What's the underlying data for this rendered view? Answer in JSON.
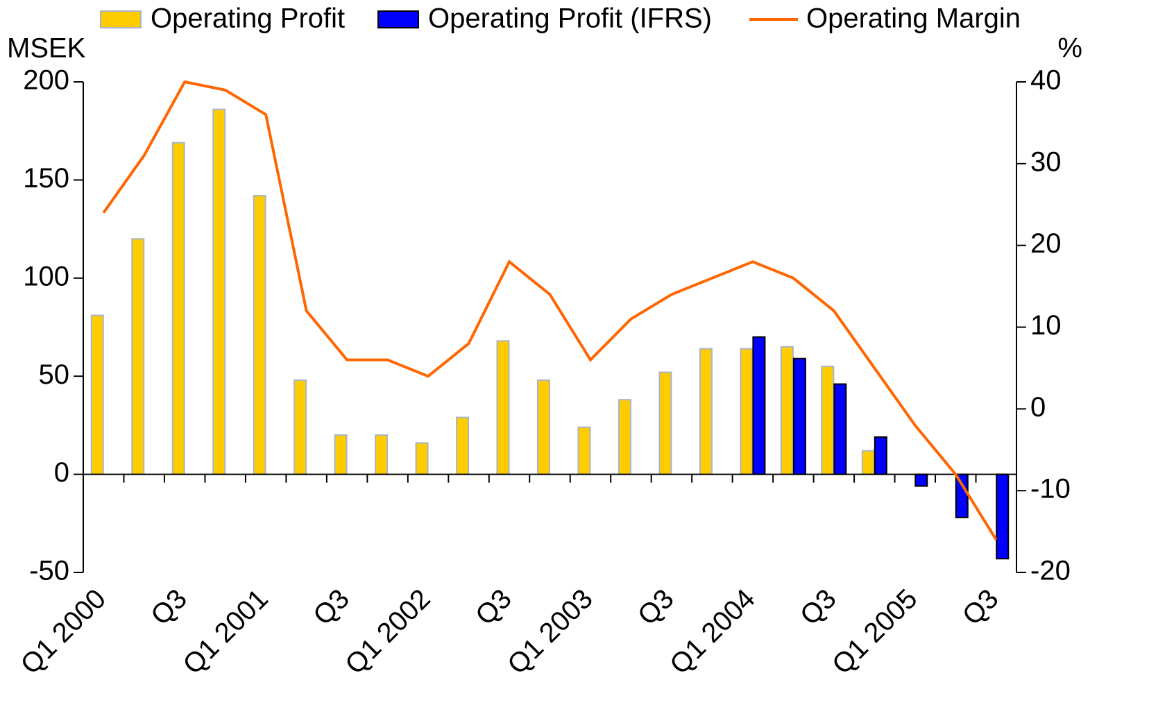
{
  "chart_data": {
    "type": "bar_line",
    "y_label": "MSEK",
    "y2_label": "%",
    "categories": [
      "Q1 2000",
      null,
      "Q3",
      null,
      "Q1 2001",
      null,
      "Q3",
      null,
      "Q1 2002",
      null,
      "Q3",
      null,
      "Q1 2003",
      null,
      "Q3",
      null,
      "Q1 2004",
      null,
      "Q3",
      null,
      "Q1 2005",
      null,
      "Q3"
    ],
    "series": [
      {
        "name": "Operating Profit",
        "type": "bar",
        "color": "#ffcc00",
        "values": [
          81,
          120,
          169,
          186,
          142,
          48,
          20,
          20,
          16,
          29,
          68,
          48,
          24,
          38,
          52,
          64,
          64,
          65,
          55,
          12,
          null,
          null,
          null
        ]
      },
      {
        "name": "Operating Profit (IFRS)",
        "type": "bar",
        "color": "#0000ff",
        "values": [
          null,
          null,
          null,
          null,
          null,
          null,
          null,
          null,
          null,
          null,
          null,
          null,
          null,
          null,
          null,
          null,
          70,
          59,
          46,
          19,
          -6,
          -22,
          -43
        ]
      },
      {
        "name": "Operating Margin",
        "type": "line",
        "axis": "y2",
        "color": "#ff6600",
        "values": [
          24,
          31,
          40,
          39,
          36,
          12,
          6,
          6,
          4,
          8,
          18,
          14,
          6,
          11,
          14,
          16,
          18,
          16,
          12,
          5,
          -2,
          -8,
          -16
        ]
      }
    ],
    "ylim": [
      -50,
      200
    ],
    "yticks": [
      200,
      150,
      100,
      50,
      0,
      -50
    ],
    "y2lim": [
      -20,
      40
    ],
    "y2ticks": [
      40,
      30,
      20,
      10,
      0,
      -10,
      -20
    ],
    "legend": "top"
  }
}
